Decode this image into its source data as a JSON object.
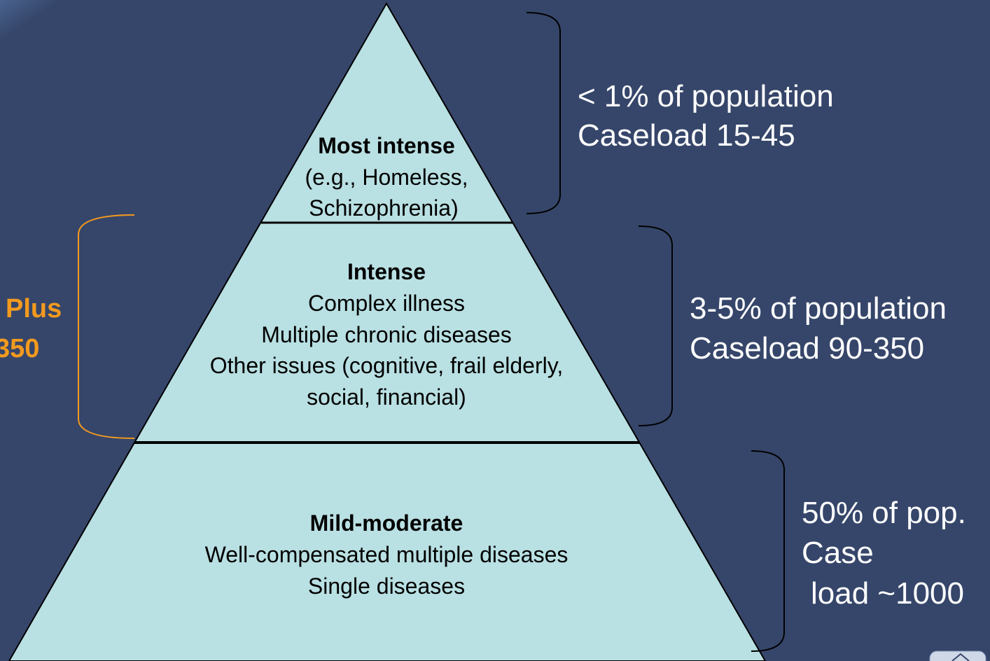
{
  "tiers": [
    {
      "title": "Most intense",
      "lines": [
        "(e.g., Homeless,",
        "Schizophrenia)"
      ]
    },
    {
      "title": "Intense",
      "lines": [
        "Complex illness",
        "Multiple chronic diseases",
        "Other issues (cognitive, frail elderly,",
        "social, financial)"
      ]
    },
    {
      "title": "Mild-moderate",
      "lines": [
        "Well-compensated multiple diseases",
        "Single diseases"
      ]
    }
  ],
  "annotations": [
    {
      "lines": [
        "< 1% of population",
        "Caseload 15-45"
      ]
    },
    {
      "lines": [
        "3-5% of population",
        "Caseload 90-350"
      ]
    },
    {
      "lines": [
        "50% of pop.",
        "Case",
        "load ~1000"
      ]
    }
  ],
  "left_label": {
    "lines": [
      "Plus",
      "350"
    ]
  }
}
